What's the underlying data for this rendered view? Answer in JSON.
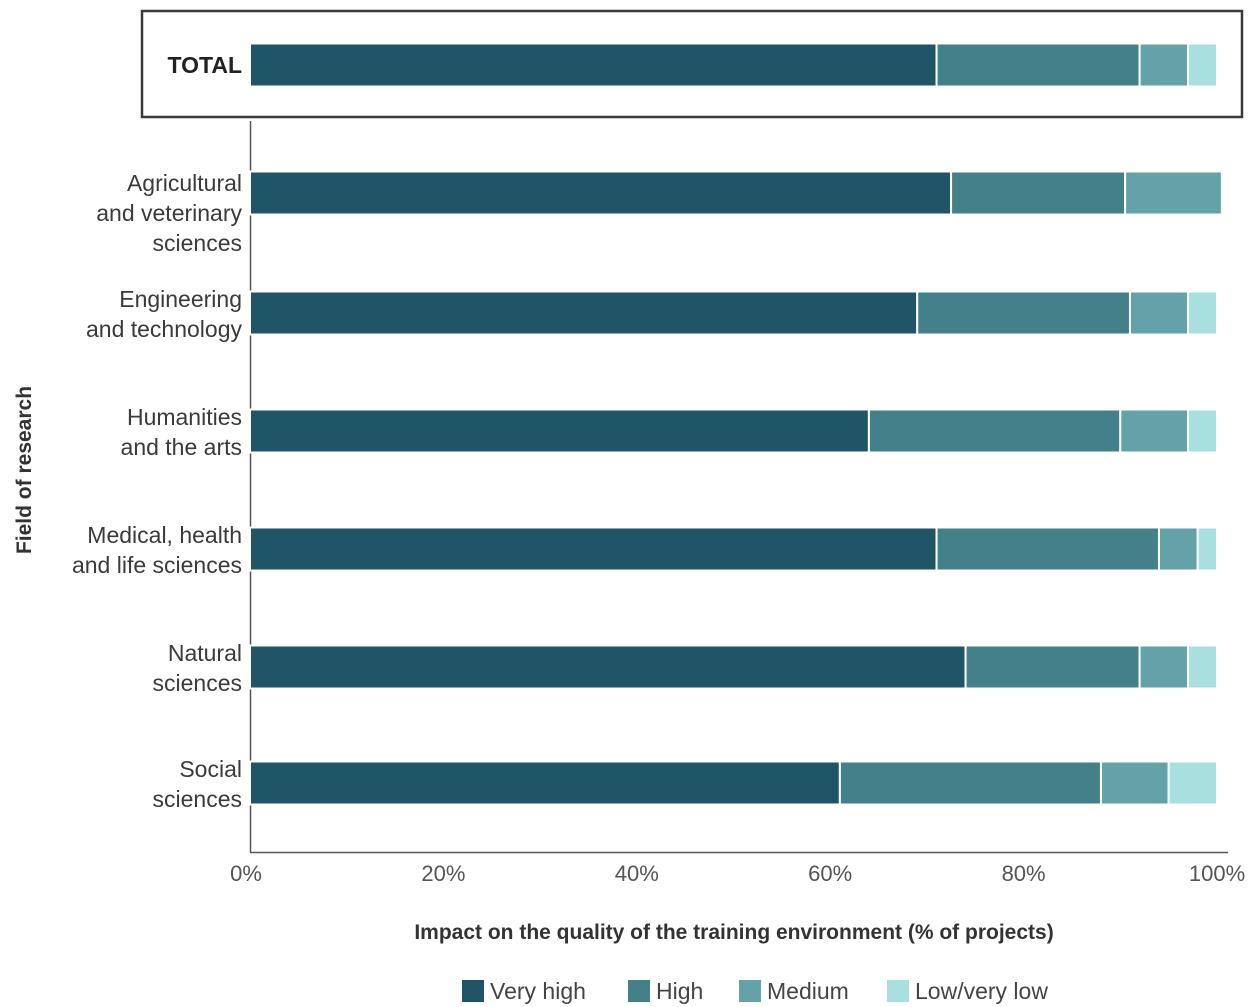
{
  "chart_data": {
    "type": "bar",
    "orientation": "horizontal",
    "stacked": true,
    "xlabel": "Impact on the quality of the training environment (% of projects)",
    "ylabel": "Field of research",
    "xlim": [
      0,
      100
    ],
    "xticks": [
      "0%",
      "20%",
      "40%",
      "60%",
      "80%",
      "100%"
    ],
    "total": {
      "label": "TOTAL",
      "values": [
        71,
        21,
        5,
        3
      ]
    },
    "categories": [
      {
        "lines": [
          "Agricultural",
          "and veterinary",
          "sciences"
        ],
        "values": [
          72.5,
          18,
          10,
          0
        ]
      },
      {
        "lines": [
          "Engineering",
          "and technology"
        ],
        "values": [
          69,
          22,
          6,
          3
        ]
      },
      {
        "lines": [
          "Humanities",
          "and the arts"
        ],
        "values": [
          64,
          26,
          7,
          3
        ]
      },
      {
        "lines": [
          "Medical, health",
          "and life sciences"
        ],
        "values": [
          71,
          23,
          4,
          2
        ]
      },
      {
        "lines": [
          "Natural",
          "sciences"
        ],
        "values": [
          74,
          18,
          5,
          3
        ]
      },
      {
        "lines": [
          "Social",
          "sciences"
        ],
        "values": [
          61,
          27,
          7,
          5
        ]
      }
    ],
    "series": [
      {
        "name": "Very high",
        "color": "#1f5566"
      },
      {
        "name": "High",
        "color": "#44808a"
      },
      {
        "name": "Medium",
        "color": "#63a2a8"
      },
      {
        "name": "Low/very low",
        "color": "#aadfe0"
      }
    ],
    "legend_position": "bottom",
    "grid": false
  }
}
